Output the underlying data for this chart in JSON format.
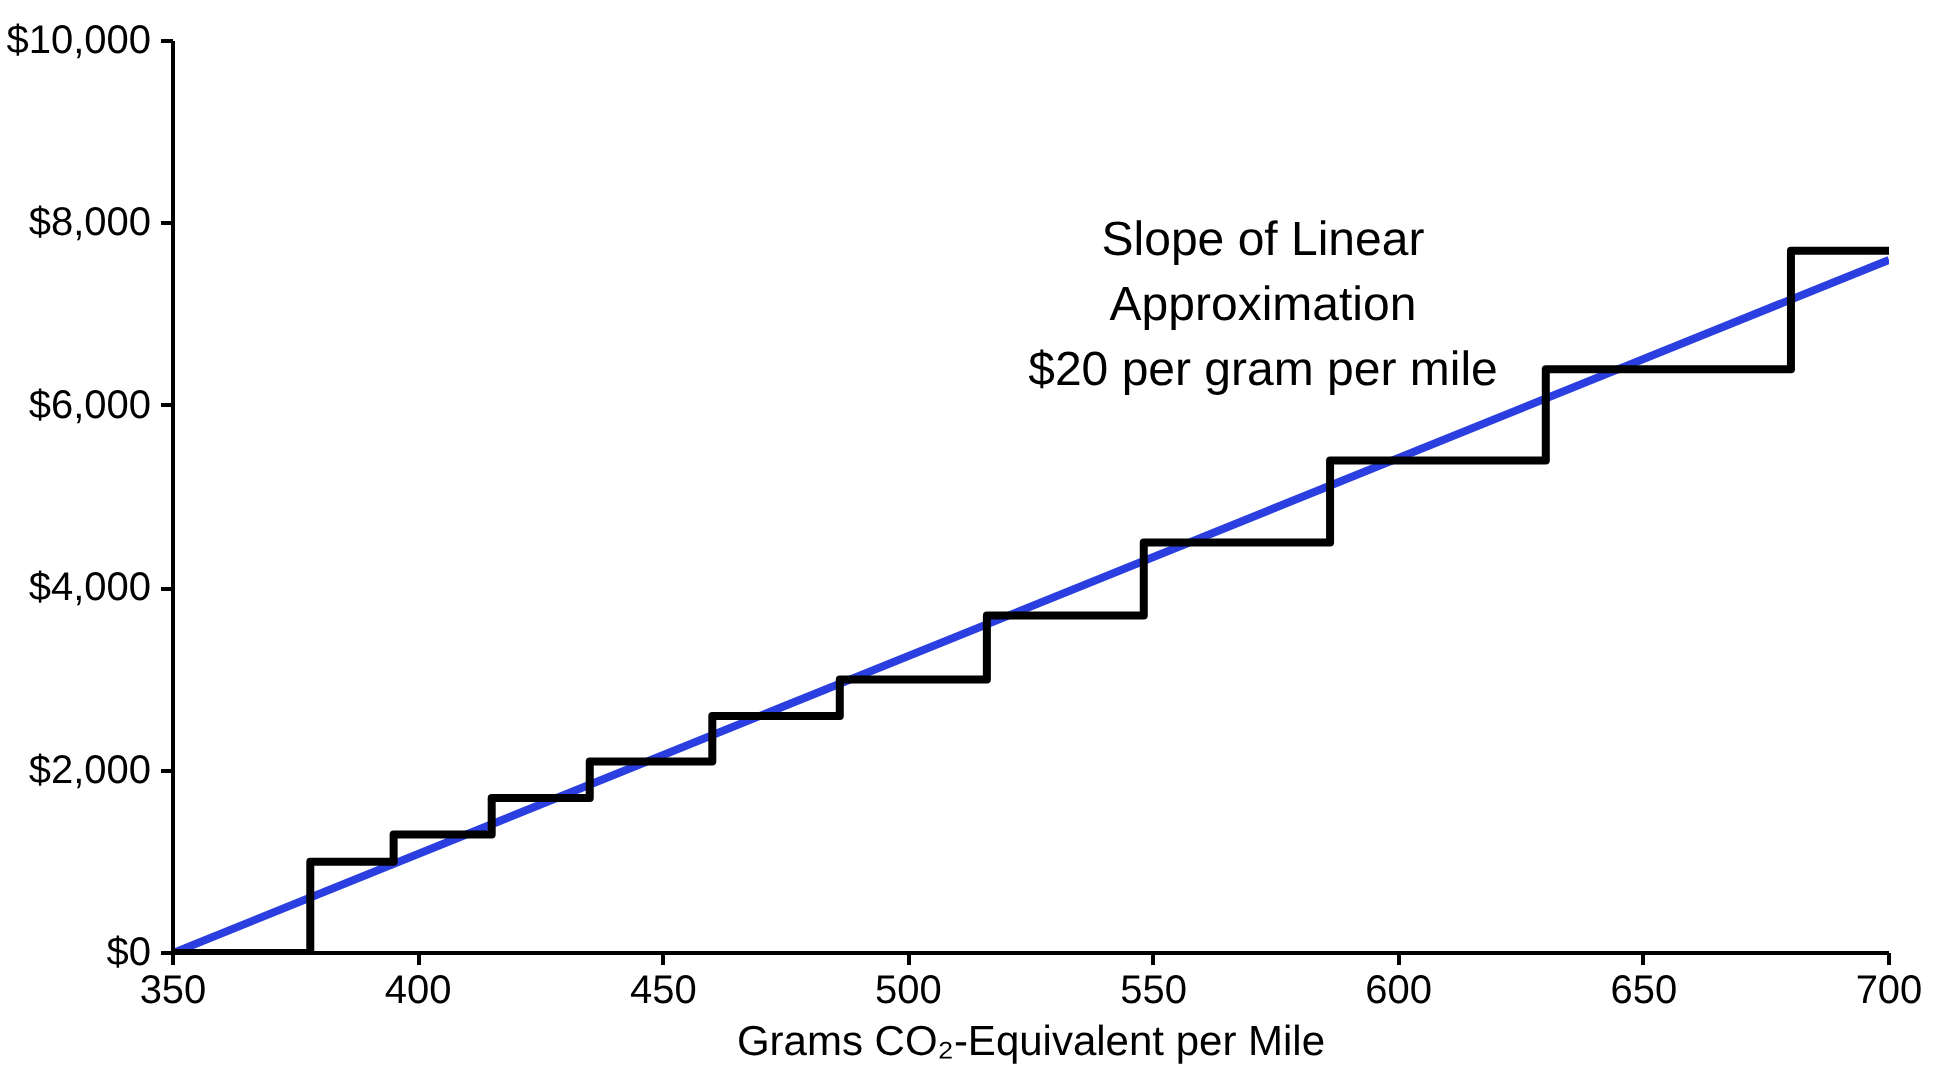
{
  "chart_data": {
    "type": "line",
    "xlabel": "Grams CO₂-Equivalent per Mile",
    "xlim": [
      350,
      700
    ],
    "xticks": [
      350,
      400,
      450,
      500,
      550,
      600,
      650,
      700
    ],
    "ylim": [
      0,
      10000
    ],
    "yticks": [
      {
        "value": 0,
        "label": "$0"
      },
      {
        "value": 2000,
        "label": "$2,000"
      },
      {
        "value": 4000,
        "label": "$4,000"
      },
      {
        "value": 6000,
        "label": "$6,000"
      },
      {
        "value": 8000,
        "label": "$8,000"
      },
      {
        "value": 10000,
        "label": "$10,000"
      }
    ],
    "grid": false,
    "annotations": [
      "Slope of Linear\nApproximation\n$20 per gram per mile"
    ],
    "series": [
      {
        "color": "#2b3fe0",
        "x": [
          350,
          700
        ],
        "values": [
          0,
          7600
        ]
      },
      {
        "type": "step",
        "color": "#000000",
        "x": [
          350,
          378,
          395,
          415,
          435,
          460,
          486,
          516,
          548,
          586,
          630,
          680,
          700
        ],
        "values": [
          0,
          1000,
          1300,
          1700,
          2100,
          2600,
          3000,
          3700,
          4500,
          5400,
          6400,
          7700,
          7700
        ]
      }
    ]
  }
}
